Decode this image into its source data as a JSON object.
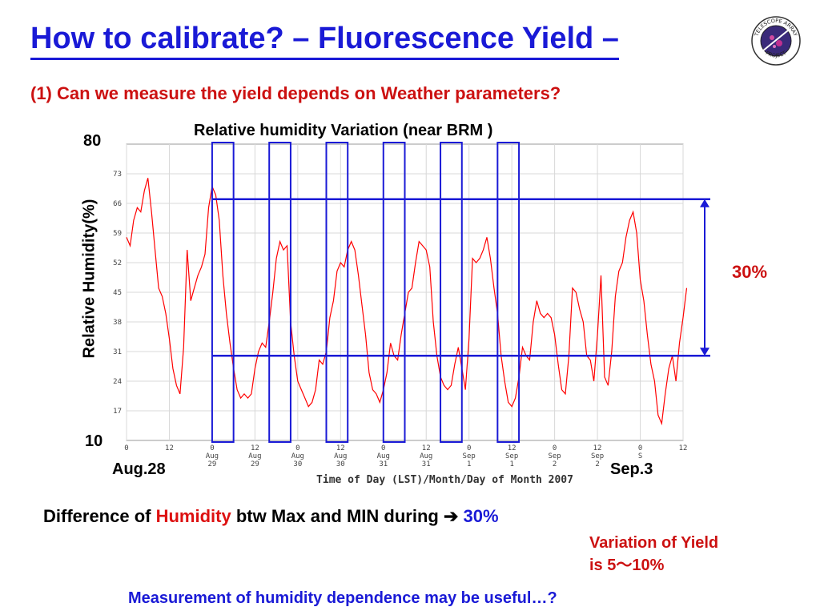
{
  "slide": {
    "title": "How to calibrate? – Fluorescence Yield –",
    "subtitle": "(1) Can we measure the yield depends on Weather parameters?",
    "chart_title": "Relative humidity Variation (near BRM )",
    "y_axis_label": "Relative Humidity(%)",
    "y_top_label": "80",
    "y_bottom_label": "10",
    "start_date": "Aug.28",
    "end_date": "Sep.3",
    "range_label": "30%",
    "difference_prefix": "Difference of ",
    "difference_highlight": "Humidity",
    "difference_middle": " btw Max and MIN during ",
    "difference_arrow": "➔",
    "difference_value": "30%",
    "yield_line1": "Variation of Yield",
    "yield_line2": "is 5～10%",
    "footer": "Measurement of humidity dependence may be useful…?",
    "logo_text_top": "TELESCOPE ARRAY",
    "logo_text_bottom": "PROJECT"
  },
  "chart_data": {
    "type": "line",
    "title": "Relative humidity Variation (near BRM )",
    "xlabel": "Time of Day (LST)/Month/Day of Month 2007",
    "ylabel": "Relative Humidity(%)",
    "ylim": [
      10,
      80
    ],
    "yticks": [
      17,
      24,
      31,
      38,
      45,
      52,
      59,
      66,
      73
    ],
    "xlim": [
      0,
      156
    ],
    "x_ticks": [
      {
        "x": 0,
        "l1": "0",
        "l2": "",
        "l3": ""
      },
      {
        "x": 12,
        "l1": "12",
        "l2": "",
        "l3": ""
      },
      {
        "x": 24,
        "l1": "0",
        "l2": "Aug",
        "l3": "29"
      },
      {
        "x": 36,
        "l1": "12",
        "l2": "Aug",
        "l3": "29"
      },
      {
        "x": 48,
        "l1": "0",
        "l2": "Aug",
        "l3": "30"
      },
      {
        "x": 60,
        "l1": "12",
        "l2": "Aug",
        "l3": "30"
      },
      {
        "x": 72,
        "l1": "0",
        "l2": "Aug",
        "l3": "31"
      },
      {
        "x": 84,
        "l1": "12",
        "l2": "Aug",
        "l3": "31"
      },
      {
        "x": 96,
        "l1": "0",
        "l2": "Sep",
        "l3": "1"
      },
      {
        "x": 108,
        "l1": "12",
        "l2": "Sep",
        "l3": "1"
      },
      {
        "x": 120,
        "l1": "0",
        "l2": "Sep",
        "l3": "2"
      },
      {
        "x": 132,
        "l1": "12",
        "l2": "Sep",
        "l3": "2"
      },
      {
        "x": 144,
        "l1": "0",
        "l2": "S",
        "l3": ""
      },
      {
        "x": 156,
        "l1": "12",
        "l2": "",
        "l3": ""
      }
    ],
    "series": [
      {
        "color": "#ff0000",
        "x": [
          0,
          1,
          2,
          3,
          4,
          5,
          6,
          7,
          8,
          9,
          10,
          11,
          12,
          13,
          14,
          15,
          16,
          17,
          18,
          19,
          20,
          21,
          22,
          23,
          24,
          25,
          26,
          27,
          28,
          29,
          30,
          31,
          32,
          33,
          34,
          35,
          36,
          37,
          38,
          39,
          40,
          41,
          42,
          43,
          44,
          45,
          46,
          47,
          48,
          49,
          50,
          51,
          52,
          53,
          54,
          55,
          56,
          57,
          58,
          59,
          60,
          61,
          62,
          63,
          64,
          65,
          66,
          67,
          68,
          69,
          70,
          71,
          72,
          73,
          74,
          75,
          76,
          77,
          78,
          79,
          80,
          81,
          82,
          83,
          84,
          85,
          86,
          87,
          88,
          89,
          90,
          91,
          92,
          93,
          94,
          95,
          96,
          97,
          98,
          99,
          100,
          101,
          102,
          103,
          104,
          105,
          106,
          107,
          108,
          109,
          110,
          111,
          112,
          113,
          114,
          115,
          116,
          117,
          118,
          119,
          120,
          121,
          122,
          123,
          124,
          125,
          126,
          127,
          128,
          129,
          130,
          131,
          132,
          133,
          134,
          135,
          136,
          137,
          138,
          139,
          140,
          141,
          142,
          143,
          144,
          145,
          146,
          147,
          148,
          149,
          150,
          151,
          152,
          153,
          154,
          155,
          156,
          157
        ],
        "y": [
          58,
          56,
          62,
          65,
          64,
          69,
          72,
          64,
          55,
          46,
          44,
          40,
          34,
          27,
          23,
          21,
          32,
          55,
          43,
          46,
          49,
          51,
          54,
          65,
          70,
          68,
          62,
          49,
          40,
          33,
          27,
          22,
          20,
          21,
          20,
          21,
          27,
          31,
          33,
          32,
          38,
          45,
          53,
          57,
          55,
          56,
          38,
          30,
          24,
          22,
          20,
          18,
          19,
          22,
          29,
          28,
          31,
          39,
          43,
          50,
          52,
          51,
          55,
          57,
          55,
          49,
          42,
          35,
          26,
          22,
          21,
          19,
          22,
          26,
          33,
          30,
          29,
          35,
          40,
          45,
          46,
          52,
          57,
          56,
          55,
          51,
          38,
          30,
          25,
          23,
          22,
          23,
          28,
          32,
          27,
          22,
          34,
          53,
          52,
          53,
          55,
          58,
          53,
          46,
          40,
          30,
          24,
          19,
          18,
          20,
          25,
          32,
          30,
          29,
          38,
          43,
          40,
          39,
          40,
          39,
          35,
          28,
          22,
          21,
          30,
          46,
          45,
          41,
          38,
          30,
          29,
          24,
          35,
          49,
          25,
          23,
          31,
          44,
          50,
          52,
          58,
          62,
          64,
          59,
          48,
          43,
          35,
          28,
          24,
          16,
          14,
          21,
          27,
          30,
          24,
          33,
          39,
          46
        ]
      }
    ],
    "highlight_windows_x": [
      [
        24,
        30
      ],
      [
        40,
        46
      ],
      [
        56,
        62
      ],
      [
        72,
        78
      ],
      [
        88,
        94
      ],
      [
        104,
        110
      ]
    ],
    "range_lines_y": [
      30,
      67
    ],
    "range_label": "30%",
    "grid": true
  }
}
